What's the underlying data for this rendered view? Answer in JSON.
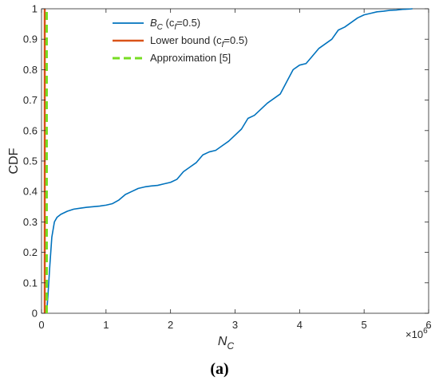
{
  "chart_data": {
    "type": "line",
    "xlabel": "N",
    "xlabel_sub": "C",
    "ylabel": "CDF",
    "x_multiplier": "×10",
    "x_multiplier_exp": "6",
    "xlim": [
      0,
      6
    ],
    "ylim": [
      0,
      1
    ],
    "x_ticks": [
      "0",
      "1",
      "2",
      "3",
      "4",
      "5",
      "6"
    ],
    "y_ticks": [
      "0",
      "0.1",
      "0.2",
      "0.3",
      "0.4",
      "0.5",
      "0.6",
      "0.7",
      "0.8",
      "0.9",
      "1"
    ],
    "caption": "(a)",
    "legend_position": "top",
    "legend": [
      {
        "main": "B",
        "sub": "C",
        "tail": " (c",
        "sub2": "f",
        "tail2": "=0.5)"
      },
      {
        "main": "Lower bound (c",
        "sub": "f",
        "tail": "=0.5)"
      },
      {
        "main": "Approximation [5]"
      }
    ],
    "series": [
      {
        "color": "#0072BD",
        "style": "solid",
        "x": [
          0.08,
          0.1,
          0.13,
          0.16,
          0.2,
          0.24,
          0.3,
          0.4,
          0.5,
          0.6,
          0.7,
          0.8,
          0.9,
          1.0,
          1.1,
          1.2,
          1.3,
          1.4,
          1.5,
          1.6,
          1.7,
          1.8,
          1.9,
          2.0,
          2.1,
          2.2,
          2.3,
          2.4,
          2.5,
          2.6,
          2.7,
          2.8,
          2.9,
          3.0,
          3.1,
          3.2,
          3.3,
          3.4,
          3.5,
          3.6,
          3.7,
          3.8,
          3.9,
          4.0,
          4.1,
          4.2,
          4.3,
          4.4,
          4.5,
          4.6,
          4.7,
          4.8,
          4.9,
          5.0,
          5.1,
          5.2,
          5.3,
          5.4,
          5.5,
          5.6,
          5.7,
          5.75
        ],
        "y": [
          0.0,
          0.06,
          0.16,
          0.25,
          0.3,
          0.315,
          0.325,
          0.335,
          0.342,
          0.345,
          0.348,
          0.35,
          0.352,
          0.355,
          0.36,
          0.372,
          0.39,
          0.4,
          0.41,
          0.415,
          0.418,
          0.42,
          0.425,
          0.43,
          0.44,
          0.465,
          0.48,
          0.495,
          0.52,
          0.53,
          0.535,
          0.55,
          0.565,
          0.585,
          0.605,
          0.64,
          0.65,
          0.67,
          0.69,
          0.705,
          0.72,
          0.76,
          0.8,
          0.815,
          0.82,
          0.845,
          0.87,
          0.885,
          0.9,
          0.93,
          0.94,
          0.955,
          0.97,
          0.98,
          0.985,
          0.99,
          0.992,
          0.995,
          0.996,
          0.998,
          0.999,
          1.0
        ]
      },
      {
        "color": "#D95319",
        "style": "solid",
        "x": [
          0.05,
          0.05
        ],
        "y": [
          0,
          1
        ]
      },
      {
        "color": "#77DD22",
        "style": "dashed",
        "x": [
          0.08,
          0.08
        ],
        "y": [
          0,
          1
        ]
      }
    ]
  }
}
